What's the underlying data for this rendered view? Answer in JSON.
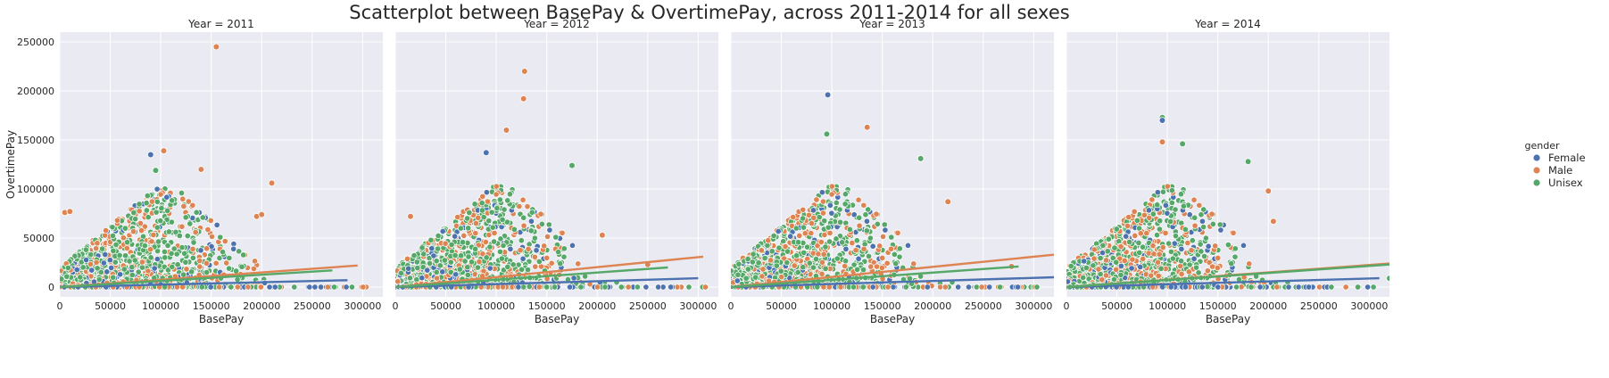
{
  "figure": {
    "title": "Scatterplot between BasePay & OvertimePay, across 2011-2014 for all sexes"
  },
  "chart_data": [
    {
      "type": "scatter",
      "title": "Year = 2011",
      "xlabel": "BasePay",
      "ylabel": "OvertimePay",
      "xlim": [
        0,
        320000
      ],
      "ylim": [
        -10000,
        260000
      ],
      "xticks": [
        0,
        50000,
        100000,
        150000,
        200000,
        250000,
        300000
      ],
      "yticks": [
        0,
        50000,
        100000,
        150000,
        200000,
        250000
      ],
      "grid": true,
      "series": [
        {
          "name": "Female",
          "fit": [
            [
              0,
              0
            ],
            [
              285000,
              7000
            ]
          ]
        },
        {
          "name": "Male",
          "fit": [
            [
              0,
              0
            ],
            [
              295000,
              22000
            ]
          ]
        },
        {
          "name": "Unisex",
          "fit": [
            [
              0,
              0
            ],
            [
              270000,
              17000
            ]
          ]
        }
      ],
      "outliers": [
        [
          155000,
          245000,
          "Male"
        ],
        [
          90000,
          135000,
          "Female"
        ],
        [
          103000,
          139000,
          "Male"
        ],
        [
          210000,
          106000,
          "Male"
        ],
        [
          195000,
          72000,
          "Male"
        ],
        [
          200000,
          74000,
          "Male"
        ],
        [
          5000,
          76000,
          "Male"
        ],
        [
          10000,
          77000,
          "Male"
        ],
        [
          140000,
          120000,
          "Male"
        ],
        [
          95000,
          119000,
          "Unisex"
        ]
      ]
    },
    {
      "type": "scatter",
      "title": "Year = 2012",
      "xlabel": "BasePay",
      "xlim": [
        0,
        320000
      ],
      "ylim": [
        -10000,
        260000
      ],
      "xticks": [
        0,
        50000,
        100000,
        150000,
        200000,
        250000,
        300000
      ],
      "grid": true,
      "series": [
        {
          "name": "Female",
          "fit": [
            [
              0,
              0
            ],
            [
              300000,
              9000
            ]
          ]
        },
        {
          "name": "Male",
          "fit": [
            [
              0,
              0
            ],
            [
              305000,
              31000
            ]
          ]
        },
        {
          "name": "Unisex",
          "fit": [
            [
              0,
              0
            ],
            [
              270000,
              20000
            ]
          ]
        }
      ],
      "outliers": [
        [
          128000,
          220000,
          "Male"
        ],
        [
          127000,
          192000,
          "Male"
        ],
        [
          110000,
          160000,
          "Male"
        ],
        [
          90000,
          137000,
          "Female"
        ],
        [
          175000,
          124000,
          "Unisex"
        ],
        [
          15000,
          72000,
          "Male"
        ],
        [
          205000,
          53000,
          "Male"
        ],
        [
          250000,
          23000,
          "Male"
        ]
      ]
    },
    {
      "type": "scatter",
      "title": "Year = 2013",
      "xlabel": "BasePay",
      "xlim": [
        0,
        320000
      ],
      "ylim": [
        -10000,
        260000
      ],
      "xticks": [
        0,
        50000,
        100000,
        150000,
        200000,
        250000,
        300000
      ],
      "grid": true,
      "series": [
        {
          "name": "Female",
          "fit": [
            [
              0,
              0
            ],
            [
              320000,
              10000
            ]
          ]
        },
        {
          "name": "Male",
          "fit": [
            [
              0,
              0
            ],
            [
              320000,
              33000
            ]
          ]
        },
        {
          "name": "Unisex",
          "fit": [
            [
              0,
              0
            ],
            [
              285000,
              21000
            ]
          ]
        }
      ],
      "outliers": [
        [
          96000,
          196000,
          "Female"
        ],
        [
          95000,
          156000,
          "Unisex"
        ],
        [
          135000,
          163000,
          "Male"
        ],
        [
          188000,
          131000,
          "Unisex"
        ],
        [
          215000,
          87000,
          "Male"
        ],
        [
          278000,
          21000,
          "Male"
        ]
      ]
    },
    {
      "type": "scatter",
      "title": "Year = 2014",
      "xlabel": "BasePay",
      "xlim": [
        0,
        320000
      ],
      "ylim": [
        -10000,
        260000
      ],
      "xticks": [
        0,
        50000,
        100000,
        150000,
        200000,
        250000,
        300000
      ],
      "grid": true,
      "series": [
        {
          "name": "Female",
          "fit": [
            [
              0,
              0
            ],
            [
              310000,
              9000
            ]
          ]
        },
        {
          "name": "Male",
          "fit": [
            [
              0,
              0
            ],
            [
              320000,
              24000
            ]
          ]
        },
        {
          "name": "Unisex",
          "fit": [
            [
              0,
              0
            ],
            [
              320000,
              23000
            ]
          ]
        }
      ],
      "outliers": [
        [
          95000,
          173000,
          "Unisex"
        ],
        [
          95000,
          170000,
          "Female"
        ],
        [
          115000,
          146000,
          "Unisex"
        ],
        [
          95000,
          148000,
          "Male"
        ],
        [
          180000,
          128000,
          "Unisex"
        ],
        [
          200000,
          98000,
          "Male"
        ],
        [
          205000,
          67000,
          "Male"
        ],
        [
          320000,
          9000,
          "Unisex"
        ]
      ]
    }
  ],
  "legend": {
    "title": "gender",
    "placement": "right",
    "entries": [
      {
        "label": "Female",
        "color": "#4c72b0"
      },
      {
        "label": "Male",
        "color": "#dd8452"
      },
      {
        "label": "Unisex",
        "color": "#55a868"
      }
    ]
  },
  "style": {
    "background": "#eaeaf2",
    "grid_color": "#ffffff",
    "colors": {
      "Female": "#4c72b0",
      "Male": "#dd8452",
      "Unisex": "#55a868"
    }
  }
}
